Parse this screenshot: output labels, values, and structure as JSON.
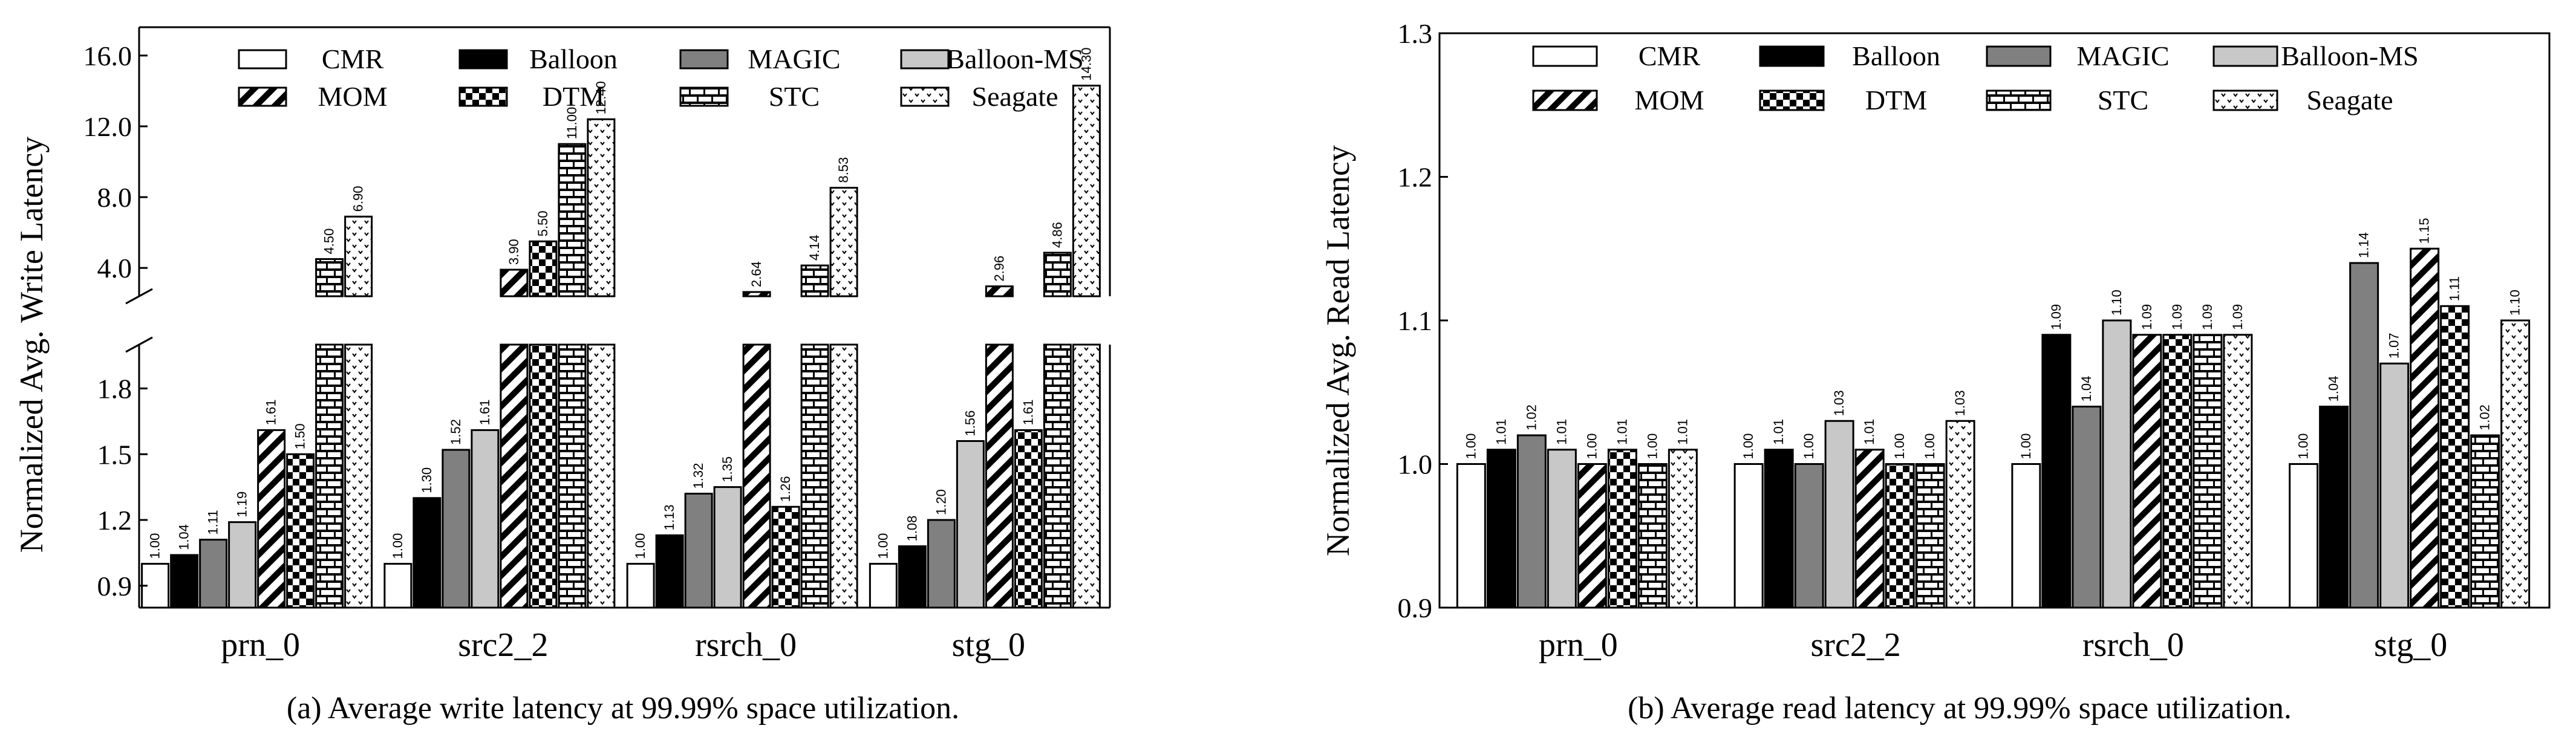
{
  "styles": {
    "CMR": {
      "fill": "#ffffff",
      "pattern": "none"
    },
    "Balloon": {
      "fill": "#000000",
      "pattern": "none"
    },
    "MAGIC": {
      "fill": "#808080",
      "pattern": "none"
    },
    "Balloon-MS": {
      "fill": "#c8c8c8",
      "pattern": "none"
    },
    "MOM": {
      "fill": "#ffffff",
      "pattern": "diag"
    },
    "DTM": {
      "fill": "#ffffff",
      "pattern": "checker"
    },
    "STC": {
      "fill": "#ffffff",
      "pattern": "brick"
    },
    "Seagate": {
      "fill": "#ffffff",
      "pattern": "dots"
    }
  },
  "chart_data": [
    {
      "id": "a",
      "type": "bar",
      "caption": "(a) Average write latency at 99.99% space utilization.",
      "ylabel": "Normalized Avg. Write Latency",
      "xlabel": "",
      "categories": [
        "prn_0",
        "src2_2",
        "rsrch_0",
        "stg_0"
      ],
      "broken_axis": true,
      "lower_ylim": [
        0.8,
        2.0
      ],
      "lower_yticks": [
        "0.9",
        "1.2",
        "1.5",
        "1.8"
      ],
      "upper_ylim": [
        2.4,
        17.6
      ],
      "upper_yticks": [
        "4.0",
        "8.0",
        "12.0",
        "16.0"
      ],
      "legend": [
        "CMR",
        "Balloon",
        "MAGIC",
        "Balloon-MS",
        "MOM",
        "DTM",
        "STC",
        "Seagate"
      ],
      "series": [
        {
          "name": "CMR",
          "values": [
            1.0,
            1.0,
            1.0,
            1.0
          ],
          "labels": [
            "1.00",
            "1.00",
            "1.00",
            "1.00"
          ]
        },
        {
          "name": "Balloon",
          "values": [
            1.04,
            1.3,
            1.13,
            1.08
          ],
          "labels": [
            "1.04",
            "1.30",
            "1.13",
            "1.08"
          ]
        },
        {
          "name": "MAGIC",
          "values": [
            1.11,
            1.52,
            1.32,
            1.2
          ],
          "labels": [
            "1.11",
            "1.52",
            "1.32",
            "1.20"
          ]
        },
        {
          "name": "Balloon-MS",
          "values": [
            1.19,
            1.61,
            1.35,
            1.56
          ],
          "labels": [
            "1.19",
            "1.61",
            "1.35",
            "1.56"
          ]
        },
        {
          "name": "MOM",
          "values": [
            1.61,
            3.9,
            2.64,
            2.96
          ],
          "labels": [
            "1.61",
            "3.90",
            "2.64",
            "2.96"
          ]
        },
        {
          "name": "DTM",
          "values": [
            1.5,
            5.5,
            1.26,
            1.61
          ],
          "labels": [
            "1.50",
            "5.50",
            "1.26",
            "1.61"
          ]
        },
        {
          "name": "STC",
          "values": [
            4.5,
            11.0,
            4.14,
            4.86
          ],
          "labels": [
            "4.50",
            "11.00",
            "4.14",
            "4.86"
          ]
        },
        {
          "name": "Seagate",
          "values": [
            6.9,
            12.4,
            8.53,
            14.3
          ],
          "labels": [
            "6.90",
            "12.40",
            "8.53",
            "14.30"
          ]
        }
      ]
    },
    {
      "id": "b",
      "type": "bar",
      "caption": "(b) Average read latency at 99.99% space utilization.",
      "ylabel": "Normalized Avg. Read Latency",
      "xlabel": "",
      "categories": [
        "prn_0",
        "src2_2",
        "rsrch_0",
        "stg_0"
      ],
      "broken_axis": false,
      "ylim": [
        0.9,
        1.3
      ],
      "yticks": [
        "0.9",
        "1.0",
        "1.1",
        "1.2",
        "1.3"
      ],
      "legend": [
        "CMR",
        "Balloon",
        "MAGIC",
        "Balloon-MS",
        "MOM",
        "DTM",
        "STC",
        "Seagate"
      ],
      "series": [
        {
          "name": "CMR",
          "values": [
            1.0,
            1.0,
            1.0,
            1.0
          ],
          "labels": [
            "1.00",
            "1.00",
            "1.00",
            "1.00"
          ]
        },
        {
          "name": "Balloon",
          "values": [
            1.01,
            1.01,
            1.09,
            1.04
          ],
          "labels": [
            "1.01",
            "1.01",
            "1.09",
            "1.04"
          ]
        },
        {
          "name": "MAGIC",
          "values": [
            1.02,
            1.0,
            1.04,
            1.14
          ],
          "labels": [
            "1.02",
            "1.00",
            "1.04",
            "1.14"
          ]
        },
        {
          "name": "Balloon-MS",
          "values": [
            1.01,
            1.03,
            1.1,
            1.07
          ],
          "labels": [
            "1.01",
            "1.03",
            "1.10",
            "1.07"
          ]
        },
        {
          "name": "MOM",
          "values": [
            1.0,
            1.01,
            1.09,
            1.15
          ],
          "labels": [
            "1.00",
            "1.01",
            "1.09",
            "1.15"
          ]
        },
        {
          "name": "DTM",
          "values": [
            1.01,
            1.0,
            1.09,
            1.11
          ],
          "labels": [
            "1.01",
            "1.00",
            "1.09",
            "1.11"
          ]
        },
        {
          "name": "STC",
          "values": [
            1.0,
            1.0,
            1.09,
            1.02
          ],
          "labels": [
            "1.00",
            "1.00",
            "1.09",
            "1.02"
          ]
        },
        {
          "name": "Seagate",
          "values": [
            1.01,
            1.03,
            1.09,
            1.1
          ],
          "labels": [
            "1.01",
            "1.03",
            "1.09",
            "1.10"
          ]
        }
      ]
    }
  ]
}
